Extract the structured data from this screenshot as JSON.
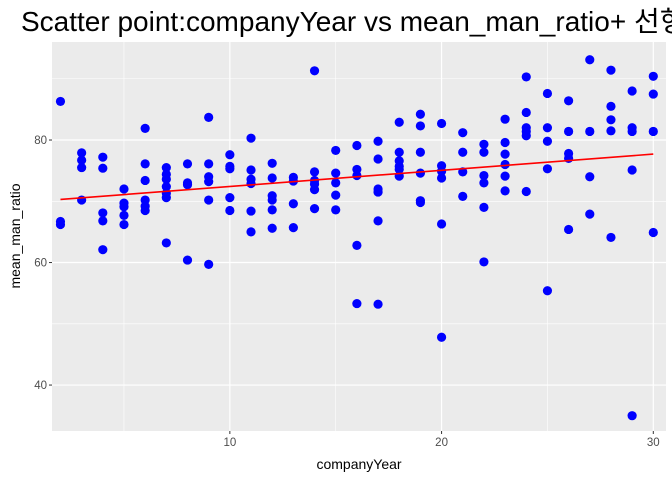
{
  "chart_data": {
    "type": "scatter",
    "title": "Scatter point:companyYear vs mean_man_ratio+ 선형",
    "xlabel": "companyYear",
    "ylabel": "mean_man_ratio",
    "xlim": [
      1.6,
      30.6
    ],
    "ylim": [
      32.5,
      96
    ],
    "x_ticks": [
      10,
      20,
      30
    ],
    "y_ticks": [
      40,
      60,
      80
    ],
    "grid": true,
    "colors": {
      "points": "#0000ff",
      "fit_line": "#ff0000",
      "panel": "#ebebeb",
      "grid": "#ffffff"
    },
    "trend_line": {
      "x": [
        2,
        30
      ],
      "y": [
        70.3,
        77.7
      ]
    },
    "points": [
      [
        2,
        86.3
      ],
      [
        2,
        66.7
      ],
      [
        2,
        66.2
      ],
      [
        3,
        77.9
      ],
      [
        3,
        76.7
      ],
      [
        3,
        75.5
      ],
      [
        3,
        70.2
      ],
      [
        4,
        77.2
      ],
      [
        4,
        75.4
      ],
      [
        4,
        68.1
      ],
      [
        4,
        66.8
      ],
      [
        4,
        62.1
      ],
      [
        5,
        72.0
      ],
      [
        5,
        69.7
      ],
      [
        5,
        69.1
      ],
      [
        5,
        67.7
      ],
      [
        5,
        66.2
      ],
      [
        6,
        81.9
      ],
      [
        6,
        76.1
      ],
      [
        6,
        73.4
      ],
      [
        6,
        70.2
      ],
      [
        6,
        69.2
      ],
      [
        6,
        68.5
      ],
      [
        7,
        75.5
      ],
      [
        7,
        74.4
      ],
      [
        7,
        73.6
      ],
      [
        7,
        72.4
      ],
      [
        7,
        71.3
      ],
      [
        7,
        70.6
      ],
      [
        7,
        63.2
      ],
      [
        8,
        76.1
      ],
      [
        8,
        73.0
      ],
      [
        8,
        72.7
      ],
      [
        8,
        60.4
      ],
      [
        9,
        83.7
      ],
      [
        9,
        76.1
      ],
      [
        9,
        74.0
      ],
      [
        9,
        73.2
      ],
      [
        9,
        70.2
      ],
      [
        9,
        59.7
      ],
      [
        10,
        77.6
      ],
      [
        10,
        75.7
      ],
      [
        10,
        75.3
      ],
      [
        10,
        70.6
      ],
      [
        10,
        68.5
      ],
      [
        11,
        80.3
      ],
      [
        11,
        75.1
      ],
      [
        11,
        73.6
      ],
      [
        11,
        72.9
      ],
      [
        11,
        68.4
      ],
      [
        11,
        65.0
      ],
      [
        12,
        76.2
      ],
      [
        12,
        73.8
      ],
      [
        12,
        70.9
      ],
      [
        12,
        70.2
      ],
      [
        12,
        68.6
      ],
      [
        12,
        65.6
      ],
      [
        13,
        73.9
      ],
      [
        13,
        73.3
      ],
      [
        13,
        69.6
      ],
      [
        13,
        65.7
      ],
      [
        14,
        91.3
      ],
      [
        14,
        74.8
      ],
      [
        14,
        73.4
      ],
      [
        14,
        72.8
      ],
      [
        14,
        71.9
      ],
      [
        14,
        68.8
      ],
      [
        15,
        78.3
      ],
      [
        15,
        74.6
      ],
      [
        15,
        73.0
      ],
      [
        15,
        71.0
      ],
      [
        15,
        68.6
      ],
      [
        16,
        79.1
      ],
      [
        16,
        75.2
      ],
      [
        16,
        74.2
      ],
      [
        16,
        62.8
      ],
      [
        16,
        53.3
      ],
      [
        17,
        79.8
      ],
      [
        17,
        76.9
      ],
      [
        17,
        72.0
      ],
      [
        17,
        71.5
      ],
      [
        17,
        66.8
      ],
      [
        17,
        53.2
      ],
      [
        18,
        82.9
      ],
      [
        18,
        78.0
      ],
      [
        18,
        76.6
      ],
      [
        18,
        75.7
      ],
      [
        18,
        75.2
      ],
      [
        18,
        74.1
      ],
      [
        19,
        84.2
      ],
      [
        19,
        82.3
      ],
      [
        19,
        78.0
      ],
      [
        19,
        74.6
      ],
      [
        19,
        70.1
      ],
      [
        19,
        69.8
      ],
      [
        20,
        82.7
      ],
      [
        20,
        75.8
      ],
      [
        20,
        74.9
      ],
      [
        20,
        73.8
      ],
      [
        20,
        66.3
      ],
      [
        20,
        47.8
      ],
      [
        21,
        81.2
      ],
      [
        21,
        78.0
      ],
      [
        21,
        74.8
      ],
      [
        21,
        70.8
      ],
      [
        22,
        79.3
      ],
      [
        22,
        78.0
      ],
      [
        22,
        74.2
      ],
      [
        22,
        73.0
      ],
      [
        22,
        69.0
      ],
      [
        22,
        60.1
      ],
      [
        23,
        83.4
      ],
      [
        23,
        79.6
      ],
      [
        23,
        77.7
      ],
      [
        23,
        76.0
      ],
      [
        23,
        74.1
      ],
      [
        23,
        71.7
      ],
      [
        24,
        90.3
      ],
      [
        24,
        84.5
      ],
      [
        24,
        82.0
      ],
      [
        24,
        81.4
      ],
      [
        24,
        80.7
      ],
      [
        24,
        71.6
      ],
      [
        25,
        87.6
      ],
      [
        25,
        82.0
      ],
      [
        25,
        79.8
      ],
      [
        25,
        75.3
      ],
      [
        25,
        55.4
      ],
      [
        26,
        86.4
      ],
      [
        26,
        81.4
      ],
      [
        26,
        77.8
      ],
      [
        26,
        77.0
      ],
      [
        26,
        65.4
      ],
      [
        27,
        93.1
      ],
      [
        27,
        81.4
      ],
      [
        27,
        74.0
      ],
      [
        27,
        67.9
      ],
      [
        28,
        91.4
      ],
      [
        28,
        85.5
      ],
      [
        28,
        83.3
      ],
      [
        28,
        81.5
      ],
      [
        28,
        64.1
      ],
      [
        29,
        88.0
      ],
      [
        29,
        82.0
      ],
      [
        29,
        81.4
      ],
      [
        29,
        75.1
      ],
      [
        29,
        35.0
      ],
      [
        30,
        90.4
      ],
      [
        30,
        87.5
      ],
      [
        30,
        81.4
      ],
      [
        30,
        64.9
      ]
    ]
  }
}
